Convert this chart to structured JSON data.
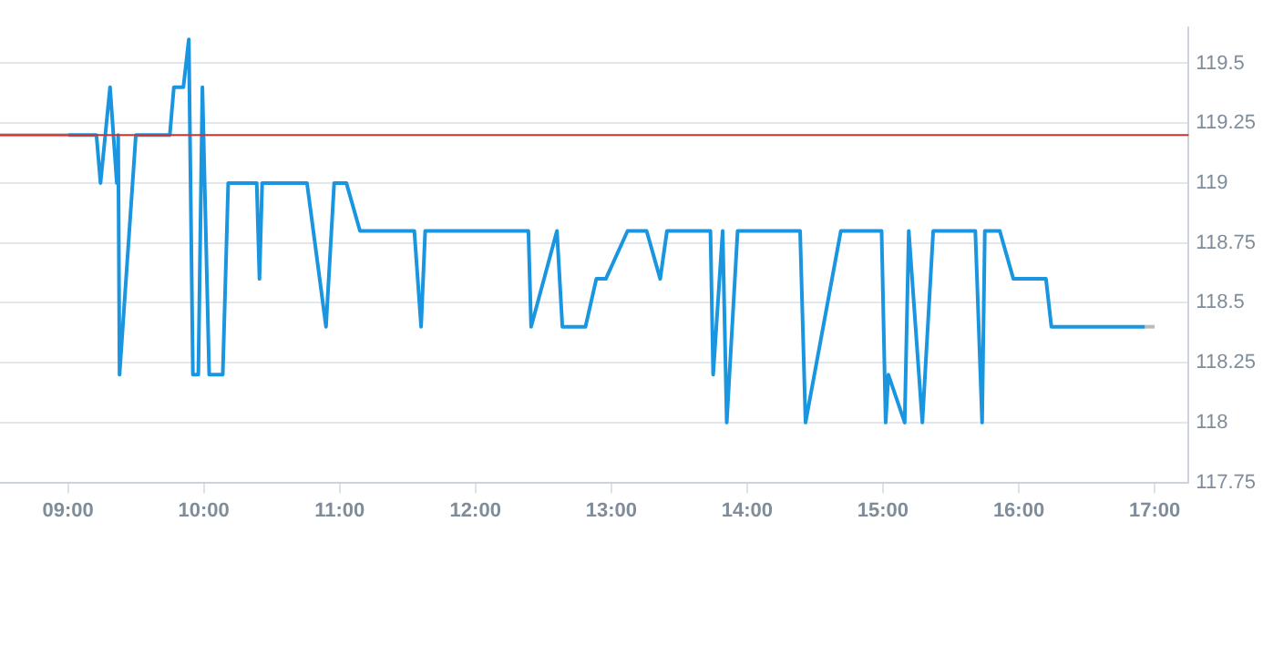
{
  "chart_data": {
    "type": "line",
    "xlim": [
      8.5,
      17.25
    ],
    "xticks": [
      {
        "value": 9,
        "label": "09:00"
      },
      {
        "value": 10,
        "label": "10:00"
      },
      {
        "value": 11,
        "label": "11:00"
      },
      {
        "value": 12,
        "label": "12:00"
      },
      {
        "value": 13,
        "label": "13:00"
      },
      {
        "value": 14,
        "label": "14:00"
      },
      {
        "value": 15,
        "label": "15:00"
      },
      {
        "value": 16,
        "label": "16:00"
      },
      {
        "value": 17,
        "label": "17:00"
      }
    ],
    "ylim": [
      117.75,
      119.65
    ],
    "yticks": [
      117.75,
      118,
      118.25,
      118.5,
      118.75,
      119,
      119.25,
      119.5
    ],
    "grid": "y",
    "legend": false,
    "marker": "none",
    "line_style": "solid",
    "ref_lines": [
      {
        "axis": "y",
        "value": 119.2,
        "color": "#cc3333"
      }
    ],
    "series": [
      {
        "color": "#bbbbbb",
        "x": [
          8.5,
          9.0
        ],
        "values": [
          119.2,
          119.2
        ]
      },
      {
        "color": "#bbbbbb",
        "x": [
          16.93,
          17.0
        ],
        "values": [
          118.4,
          118.4
        ]
      },
      {
        "color": "#1a96e0",
        "x": [
          9.0,
          9.21,
          9.24,
          9.31,
          9.36,
          9.37,
          9.38,
          9.5,
          9.75,
          9.78,
          9.85,
          9.89,
          9.92,
          9.96,
          9.99,
          10.04,
          10.14,
          10.18,
          10.39,
          10.41,
          10.43,
          10.76,
          10.9,
          10.96,
          11.05,
          11.15,
          11.55,
          11.6,
          11.63,
          12.39,
          12.41,
          12.6,
          12.64,
          12.81,
          12.89,
          12.96,
          13.12,
          13.26,
          13.36,
          13.41,
          13.73,
          13.75,
          13.82,
          13.85,
          13.93,
          14.39,
          14.43,
          14.69,
          14.99,
          15.02,
          15.04,
          15.16,
          15.19,
          15.29,
          15.37,
          15.68,
          15.73,
          15.75,
          15.86,
          15.96,
          16.2,
          16.24,
          16.93
        ],
        "values": [
          119.2,
          119.2,
          119.0,
          119.4,
          119.0,
          119.2,
          118.2,
          119.2,
          119.2,
          119.4,
          119.4,
          119.6,
          118.2,
          118.2,
          119.4,
          118.2,
          118.2,
          119.0,
          119.0,
          118.6,
          119.0,
          119.0,
          118.4,
          119.0,
          119.0,
          118.8,
          118.8,
          118.4,
          118.8,
          118.8,
          118.4,
          118.8,
          118.4,
          118.4,
          118.6,
          118.6,
          118.8,
          118.8,
          118.6,
          118.8,
          118.8,
          118.2,
          118.8,
          118.0,
          118.8,
          118.8,
          118.0,
          118.8,
          118.8,
          118.0,
          118.2,
          118.0,
          118.8,
          118.0,
          118.8,
          118.8,
          118.0,
          118.8,
          118.8,
          118.6,
          118.6,
          118.4,
          118.4
        ]
      }
    ]
  }
}
